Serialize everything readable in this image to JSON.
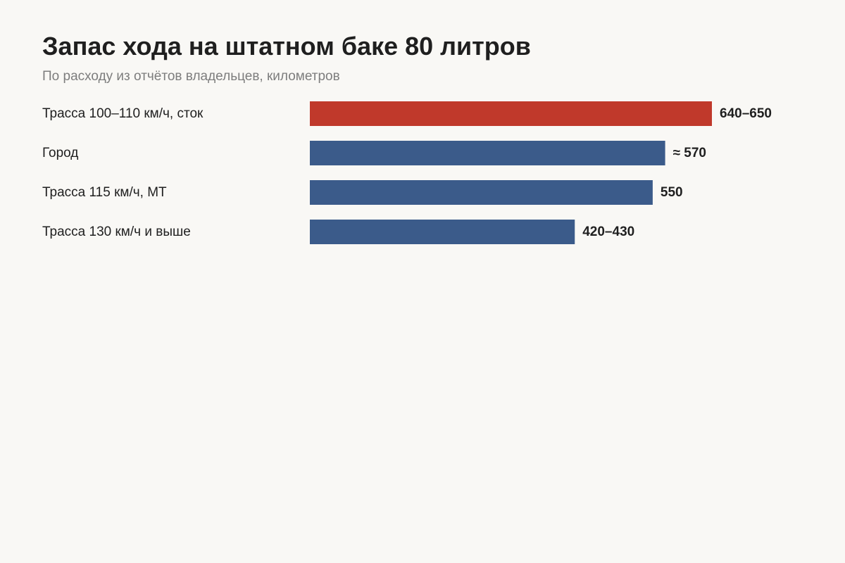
{
  "title": "Запас хода на штатном баке 80 литров",
  "subtitle": "По расходу из отчётов владельцев, километров",
  "colors": {
    "highlight": "#c0392b",
    "bar": "#3b5b8a",
    "background": "#f9f8f5"
  },
  "chart_data": {
    "type": "bar",
    "orientation": "horizontal",
    "title": "Запас хода на штатном баке 80 литров",
    "subtitle": "По расходу из отчётов владельцев, километров",
    "unit": "километров",
    "xlim": [
      0,
      800
    ],
    "grid": false,
    "legend": "none",
    "bars": [
      {
        "category": "Трасса 100–110 км/ч, сток",
        "value": 645,
        "range": [
          640,
          650
        ],
        "label": "640–650",
        "highlight": true
      },
      {
        "category": "Город",
        "value": 570,
        "label": "≈ 570",
        "highlight": false
      },
      {
        "category": "Трасса 115 км/ч, МТ",
        "value": 550,
        "label": "550",
        "highlight": false
      },
      {
        "category": "Трасса 130 км/ч и выше",
        "value": 425,
        "range": [
          420,
          430
        ],
        "label": "420–430",
        "highlight": false
      }
    ]
  }
}
